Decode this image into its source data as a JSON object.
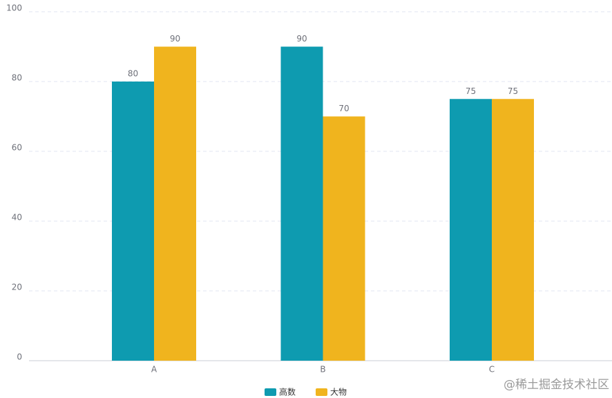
{
  "chart_data": {
    "type": "bar",
    "categories": [
      "A",
      "B",
      "C"
    ],
    "series": [
      {
        "name": "高数",
        "color": "#0e9bb0",
        "values": [
          80,
          90,
          75
        ]
      },
      {
        "name": "大物",
        "color": "#f0b41e",
        "values": [
          90,
          70,
          75
        ]
      }
    ],
    "ylim": [
      0,
      100
    ],
    "yticks": [
      0,
      20,
      40,
      60,
      80,
      100
    ],
    "grid": true,
    "legend": "bottom",
    "watermark": "@稀土掘金技术社区"
  }
}
